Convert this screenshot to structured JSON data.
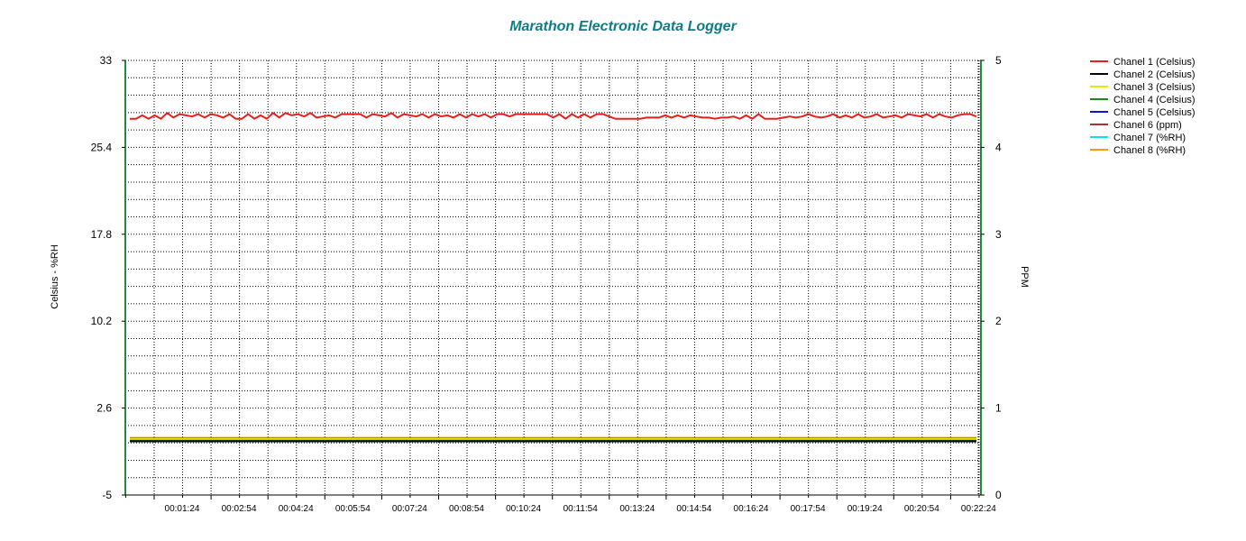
{
  "colors": {
    "title": "#0e7c86",
    "axis_line": "#1e8a3a",
    "grid": "#000000"
  },
  "chart_data": {
    "type": "line",
    "title": "Marathon Electronic Data Logger",
    "xlabel": "",
    "ylabel": "Celsius - %RH",
    "y2label": "PPM",
    "ylim": [
      -5,
      33
    ],
    "y2lim": [
      0,
      5
    ],
    "yticks": [
      "33",
      "25.4",
      "17.8",
      "10.2",
      "2.6",
      "-5"
    ],
    "y2ticks": [
      "5",
      "4",
      "3",
      "2",
      "1",
      "0"
    ],
    "xtick_labels": [
      "00:01:24",
      "00:02:54",
      "00:04:24",
      "00:05:54",
      "00:07:24",
      "00:08:54",
      "00:10:24",
      "00:11:54",
      "00:13:24",
      "00:14:54",
      "00:16:24",
      "00:17:54",
      "00:19:24",
      "00:20:54",
      "00:22:24"
    ],
    "x_seconds_range": [
      0,
      1360
    ],
    "grid": true,
    "legend_position": "top-right",
    "series": [
      {
        "name": "Chanel 1 (Celsius)",
        "color": "#e8201c",
        "axis": "left",
        "x_seconds": [
          0,
          10,
          20,
          30,
          40,
          50,
          60,
          70,
          80,
          90,
          100,
          110,
          120,
          130,
          140,
          150,
          160,
          170,
          180,
          190,
          200,
          210,
          220,
          230,
          240,
          250,
          260,
          270,
          280,
          290,
          300,
          310,
          320,
          330,
          340,
          350,
          360,
          370,
          380,
          390,
          400,
          410,
          420,
          430,
          440,
          450,
          460,
          470,
          480,
          490,
          500,
          510,
          520,
          530,
          540,
          550,
          560,
          570,
          580,
          590,
          600,
          610,
          620,
          630,
          640,
          650,
          660,
          670,
          680,
          690,
          700,
          710,
          720,
          730,
          740,
          750,
          760,
          770,
          780,
          790,
          800,
          810,
          820,
          830,
          840,
          850,
          860,
          870,
          880,
          890,
          900,
          910,
          920,
          930,
          940,
          950,
          960,
          970,
          980,
          990,
          1000,
          1010,
          1020,
          1030,
          1040,
          1050,
          1060,
          1070,
          1080,
          1090,
          1100,
          1110,
          1120,
          1130,
          1140,
          1150,
          1160,
          1170,
          1180,
          1190,
          1200,
          1210,
          1220,
          1230,
          1240,
          1250,
          1260,
          1270,
          1280,
          1290,
          1300,
          1310,
          1320,
          1330,
          1340,
          1350,
          1360
        ],
        "values": [
          27.9,
          27.9,
          28.2,
          27.9,
          28.2,
          27.9,
          28.4,
          28.0,
          28.3,
          28.2,
          28.1,
          28.3,
          28.0,
          28.3,
          28.2,
          28.0,
          28.3,
          27.9,
          27.9,
          28.3,
          27.9,
          28.2,
          27.9,
          28.4,
          28.0,
          28.4,
          28.2,
          28.3,
          28.1,
          28.4,
          28.0,
          28.1,
          28.2,
          28.0,
          28.3,
          28.3,
          28.3,
          28.3,
          28.0,
          28.3,
          28.2,
          28.1,
          28.4,
          28.0,
          28.3,
          28.2,
          28.1,
          28.3,
          28.0,
          28.3,
          28.1,
          28.2,
          28.0,
          28.3,
          28.0,
          28.3,
          28.1,
          28.3,
          28.0,
          28.3,
          28.3,
          28.1,
          28.3,
          28.3,
          28.3,
          28.3,
          28.3,
          28.3,
          28.0,
          28.3,
          27.9,
          28.3,
          28.0,
          28.3,
          28.0,
          28.3,
          28.3,
          28.1,
          27.9,
          27.9,
          27.9,
          27.9,
          27.9,
          28.0,
          28.0,
          28.0,
          28.2,
          28.0,
          28.2,
          28.0,
          28.2,
          28.1,
          28.0,
          28.0,
          27.9,
          28.0,
          28.0,
          28.1,
          27.9,
          28.2,
          27.9,
          28.3,
          27.9,
          27.9,
          27.9,
          28.0,
          28.1,
          28.0,
          28.1,
          28.3,
          28.1,
          28.0,
          28.1,
          28.3,
          28.0,
          28.2,
          28.0,
          28.3,
          28.0,
          28.1,
          28.3,
          28.0,
          28.1,
          28.2,
          28.0,
          28.3,
          28.2,
          28.1,
          28.3,
          28.0,
          28.3,
          28.1,
          28.0,
          28.2,
          28.3,
          28.3,
          28.1
        ]
      },
      {
        "name": "Chanel 2 (Celsius)",
        "color": "#000000",
        "axis": "left",
        "x_seconds": [
          0,
          1360
        ],
        "values": [
          -0.3,
          -0.3
        ]
      },
      {
        "name": "Chanel 3 (Celsius)",
        "color": "#e6e600",
        "axis": "left",
        "x_seconds": [
          0,
          1360
        ],
        "values": [
          -0.1,
          -0.1
        ]
      },
      {
        "name": "Chanel 4 (Celsius)",
        "color": "#1a8a1a",
        "axis": "left",
        "x_seconds": [
          0,
          1360
        ],
        "values": [
          -0.2,
          -0.2
        ]
      },
      {
        "name": "Chanel 5 (Celsius)",
        "color": "#1010e0",
        "axis": "left",
        "x_seconds": [
          0,
          1360
        ],
        "values": [
          -0.3,
          -0.3
        ]
      },
      {
        "name": "Chanel 6 (ppm)",
        "color": "#b03030",
        "axis": "right",
        "x_seconds": [
          0,
          1360
        ],
        "values": [
          0.65,
          0.65
        ]
      },
      {
        "name": "Chanel 7 (%RH)",
        "color": "#00e5ff",
        "axis": "left",
        "x_seconds": [
          0,
          1360
        ],
        "values": [
          -0.15,
          -0.15
        ]
      },
      {
        "name": "Chanel 8 (%RH)",
        "color": "#ff9900",
        "axis": "left",
        "x_seconds": [
          0,
          1360
        ],
        "values": [
          0.0,
          0.0
        ]
      }
    ]
  }
}
